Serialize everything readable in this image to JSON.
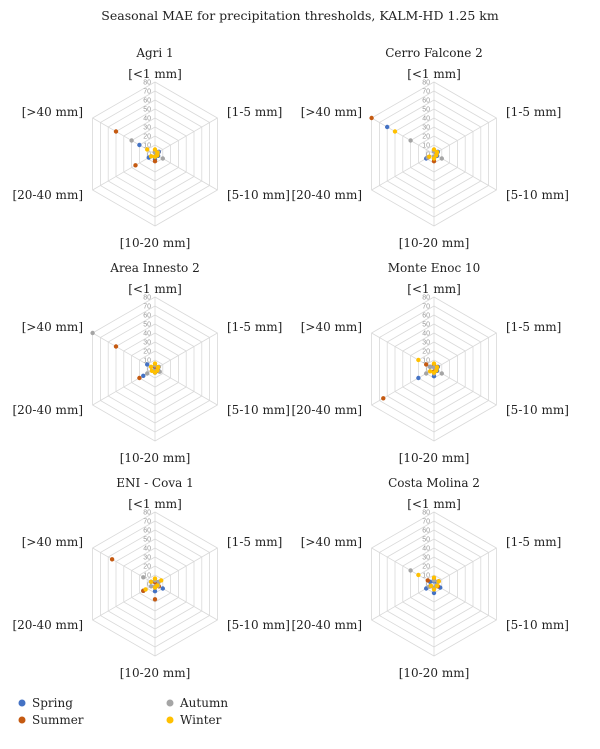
{
  "chart_data": {
    "type": "radar",
    "title": "Seasonal MAE for precipitation thresholds, KALM-HD 1.25 km",
    "axes": [
      "[<1 mm]",
      "[1-5 mm]",
      "[5-10 mm]",
      "[10-20 mm]",
      "[20-40 mm]",
      "[>40 mm]"
    ],
    "rlim": [
      0,
      80
    ],
    "rticks": [
      0,
      10,
      20,
      30,
      40,
      50,
      60,
      70,
      80
    ],
    "grid": true,
    "legend_position": "bottom-left",
    "series_colors": {
      "Spring": "#4472C4",
      "Summer": "#C55A11",
      "Autumn": "#A5A5A5",
      "Winter": "#FFC000"
    },
    "legend": [
      "Spring",
      "Summer",
      "Autumn",
      "Winter"
    ],
    "panels": [
      {
        "title": "Agri 1",
        "series": [
          {
            "name": "Spring",
            "values": [
              2,
              5,
              4,
              6,
              8,
              20
            ]
          },
          {
            "name": "Summer",
            "values": [
              3,
              4,
              3,
              8,
              25,
              50
            ]
          },
          {
            "name": "Autumn",
            "values": [
              2,
              4,
              10,
              3,
              5,
              30
            ]
          },
          {
            "name": "Winter",
            "values": [
              5,
              3,
              3,
              3,
              5,
              10
            ]
          }
        ]
      },
      {
        "title": "Cerro Falcone 2",
        "series": [
          {
            "name": "Spring",
            "values": [
              3,
              5,
              4,
              5,
              10,
              60
            ]
          },
          {
            "name": "Summer",
            "values": [
              4,
              3,
              3,
              8,
              8,
              80
            ]
          },
          {
            "name": "Autumn",
            "values": [
              3,
              4,
              10,
              3,
              8,
              30
            ]
          },
          {
            "name": "Winter",
            "values": [
              5,
              4,
              3,
              5,
              6,
              50
            ]
          }
        ]
      },
      {
        "title": "Area Innesto 2",
        "series": [
          {
            "name": "Spring",
            "values": [
              2,
              4,
              5,
              4,
              15,
              10
            ]
          },
          {
            "name": "Summer",
            "values": [
              3,
              3,
              4,
              3,
              20,
              50
            ]
          },
          {
            "name": "Autumn",
            "values": [
              4,
              5,
              6,
              2,
              10,
              80
            ]
          },
          {
            "name": "Winter",
            "values": [
              6,
              4,
              3,
              4,
              4,
              5
            ]
          }
        ]
      },
      {
        "title": "Monte Enoc 10",
        "series": [
          {
            "name": "Spring",
            "values": [
              3,
              5,
              4,
              8,
              20,
              5
            ]
          },
          {
            "name": "Summer",
            "values": [
              5,
              4,
              3,
              3,
              65,
              10
            ]
          },
          {
            "name": "Autumn",
            "values": [
              2,
              3,
              10,
              5,
              10,
              5
            ]
          },
          {
            "name": "Winter",
            "values": [
              6,
              4,
              3,
              4,
              5,
              20
            ]
          }
        ]
      },
      {
        "title": "ENI - Cova 1",
        "series": [
          {
            "name": "Spring",
            "values": [
              3,
              4,
              10,
              8,
              15,
              5
            ]
          },
          {
            "name": "Summer",
            "values": [
              2,
              3,
              5,
              17,
              15,
              55
            ]
          },
          {
            "name": "Autumn",
            "values": [
              4,
              5,
              4,
              3,
              5,
              15
            ]
          },
          {
            "name": "Winter",
            "values": [
              6,
              8,
              3,
              4,
              12,
              5
            ]
          }
        ]
      },
      {
        "title": "Costa Molina 2",
        "series": [
          {
            "name": "Spring",
            "values": [
              3,
              4,
              8,
              10,
              10,
              5
            ]
          },
          {
            "name": "Summer",
            "values": [
              5,
              6,
              5,
              5,
              5,
              8
            ]
          },
          {
            "name": "Autumn",
            "values": [
              4,
              5,
              3,
              4,
              6,
              30
            ]
          },
          {
            "name": "Winter",
            "values": [
              7,
              6,
              4,
              6,
              4,
              20
            ]
          }
        ]
      }
    ]
  }
}
